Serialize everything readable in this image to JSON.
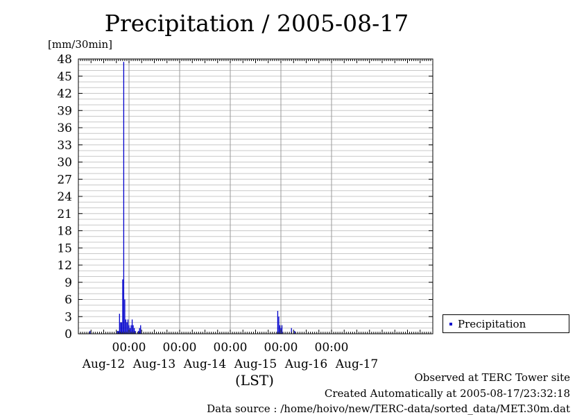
{
  "title": "Precipitation / 2005-08-17",
  "y_unit": "[mm/30min]",
  "x_unit": "(LST)",
  "legend": {
    "label": "Precipitation",
    "color": "#0000cc"
  },
  "footer": {
    "observed": "Observed at TERC Tower site",
    "created": "Created Automatically at 2005-08-17/23:32:18",
    "source": "Data source : /home/hoivo/new/TERC-data/sorted_data/MET.30m.dat"
  },
  "chart_data": {
    "type": "bar",
    "title": "Precipitation / 2005-08-17",
    "ylabel": "[mm/30min]",
    "xlabel": "(LST)",
    "x_unit": "hours since 2005-08-11 00:00",
    "ylim": [
      0,
      48
    ],
    "xlim": [
      0,
      168
    ],
    "yticks": [
      0,
      3,
      6,
      9,
      12,
      15,
      18,
      21,
      24,
      27,
      30,
      33,
      36,
      39,
      42,
      45,
      48
    ],
    "time_ticks": [
      {
        "x": 24,
        "label": "00:00"
      },
      {
        "x": 48,
        "label": "00:00"
      },
      {
        "x": 72,
        "label": "00:00"
      },
      {
        "x": 96,
        "label": "00:00"
      },
      {
        "x": 120,
        "label": "00:00"
      }
    ],
    "date_ticks": [
      {
        "x": 12,
        "label": "Aug-12"
      },
      {
        "x": 36,
        "label": "Aug-13"
      },
      {
        "x": 60,
        "label": "Aug-14"
      },
      {
        "x": 84,
        "label": "Aug-15"
      },
      {
        "x": 108,
        "label": "Aug-16"
      },
      {
        "x": 132,
        "label": "Aug-17"
      }
    ],
    "grid": true,
    "legend_position": "right",
    "series": [
      {
        "name": "Precipitation",
        "color": "#0000cc",
        "points": [
          [
            5.5,
            0.5
          ],
          [
            18.5,
            0.5
          ],
          [
            19.0,
            0.5
          ],
          [
            19.5,
            3.5
          ],
          [
            20.0,
            2.0
          ],
          [
            20.5,
            2.0
          ],
          [
            21.0,
            9.5
          ],
          [
            21.5,
            47.5
          ],
          [
            22.0,
            6.0
          ],
          [
            22.5,
            2.5
          ],
          [
            23.0,
            2.0
          ],
          [
            23.5,
            2.5
          ],
          [
            24.0,
            1.5
          ],
          [
            24.5,
            1.0
          ],
          [
            25.0,
            1.5
          ],
          [
            25.5,
            2.5
          ],
          [
            26.0,
            1.5
          ],
          [
            26.5,
            1.0
          ],
          [
            27.0,
            0.5
          ],
          [
            28.5,
            0.5
          ],
          [
            29.0,
            1.0
          ],
          [
            29.5,
            1.5
          ],
          [
            94.5,
            4.0
          ],
          [
            95.0,
            3.0
          ],
          [
            95.5,
            1.5
          ],
          [
            96.0,
            1.0
          ],
          [
            96.5,
            1.5
          ],
          [
            101.0,
            1.0
          ],
          [
            102.5,
            0.5
          ]
        ]
      }
    ]
  }
}
